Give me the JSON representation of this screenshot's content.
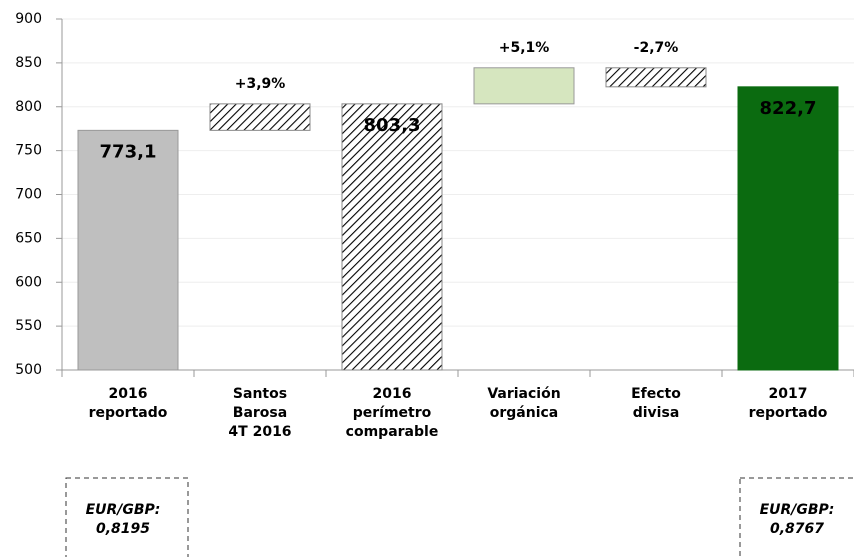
{
  "chart_data": {
    "type": "waterfall",
    "categories": [
      [
        "2016",
        "reportado"
      ],
      [
        "Santos",
        "Barosa",
        "4T 2016"
      ],
      [
        "2016",
        "perímetro",
        "comparable"
      ],
      [
        "Variación",
        "orgánica"
      ],
      [
        "Efecto",
        "divisa"
      ],
      [
        "2017",
        "reportado"
      ]
    ],
    "measures": [
      "total",
      "relative",
      "total",
      "relative",
      "relative",
      "total"
    ],
    "values": [
      773.1,
      30.2,
      803.3,
      41.1,
      -21.7,
      822.7
    ],
    "value_labels": [
      "773,1",
      null,
      "803,3",
      null,
      null,
      "822,7"
    ],
    "change_labels": [
      null,
      "+3,9%",
      null,
      "+5,1%",
      "-2,7%",
      null
    ],
    "bar_styles": [
      {
        "color": "#bfbfbf",
        "hatch": false
      },
      {
        "color": "#a6a6a6",
        "hatch": true
      },
      {
        "color": "#a6a6a6",
        "hatch": true
      },
      {
        "color": "#d6e6bf",
        "hatch": false
      },
      {
        "color": "#7a9a3a",
        "hatch": true
      },
      {
        "color": "#0b6b10",
        "hatch": false
      }
    ],
    "ylim": [
      500,
      900
    ],
    "yticks": [
      500,
      550,
      600,
      650,
      700,
      750,
      800,
      850,
      900
    ],
    "grid": true,
    "notes": [
      [
        "EUR/GBP:",
        "0,8195"
      ],
      [
        "EUR/GBP:",
        "0,8767"
      ]
    ]
  }
}
